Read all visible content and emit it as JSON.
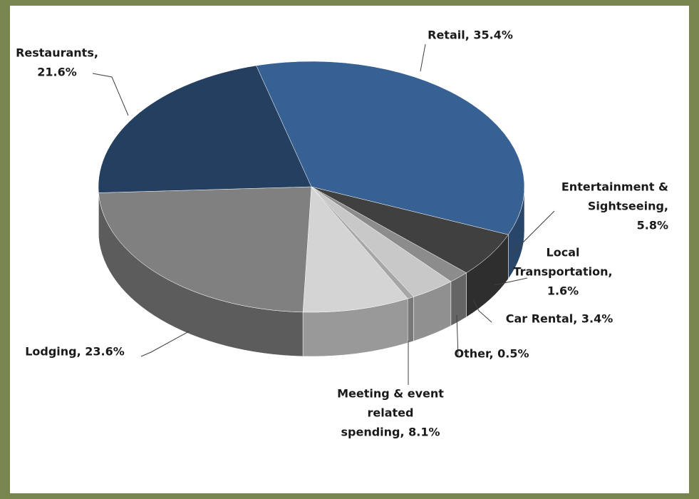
{
  "chart_data": {
    "type": "pie3d",
    "values": [
      35.4,
      5.8,
      1.6,
      3.4,
      0.5,
      8.1,
      23.6,
      21.6
    ],
    "value_labels": [
      [
        "Retail, 35.4%"
      ],
      [
        "Entertainment &",
        "Sightseeing,",
        "5.8%"
      ],
      [
        "Local",
        "Transportation,",
        "1.6%"
      ],
      [
        "Car Rental, 3.4%"
      ],
      [
        "Other, 0.5%"
      ],
      [
        "Meeting & event",
        "related",
        "spending, 8.1%"
      ],
      [
        "Lodging, 23.6%"
      ],
      [
        "Restaurants,",
        "21.6%"
      ]
    ],
    "colors": [
      "#376093",
      "#404040",
      "#8c8c8c",
      "#c8c8c8",
      "#a6a6a6",
      "#d4d4d4",
      "#808080",
      "#243f60"
    ]
  }
}
